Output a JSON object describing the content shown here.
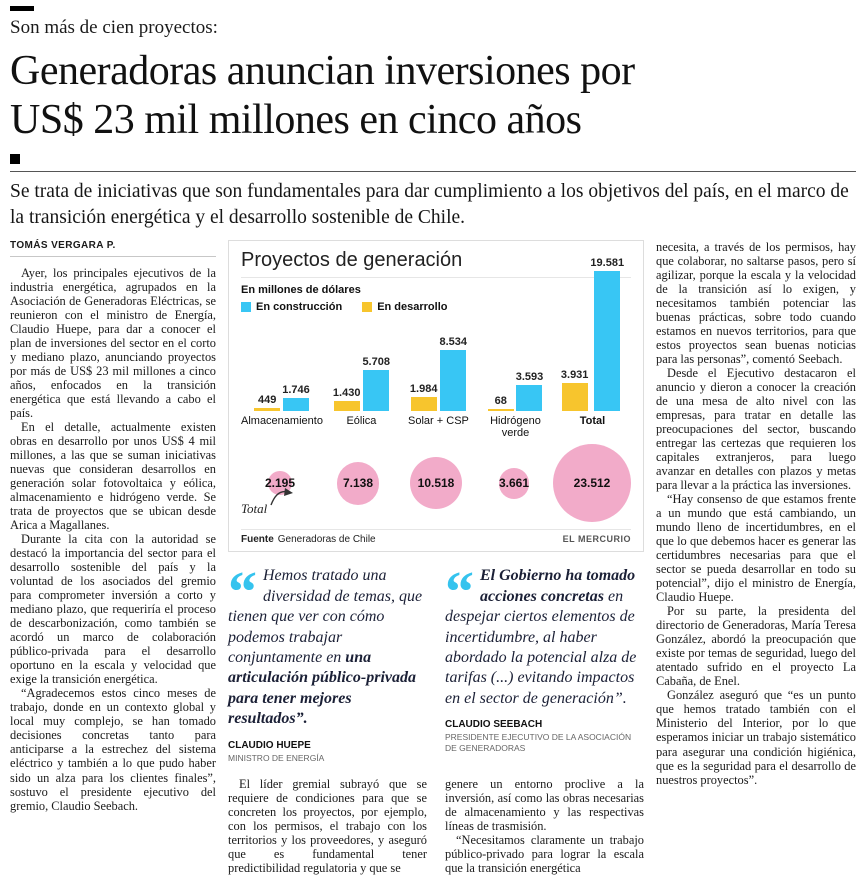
{
  "header": {
    "kicker": "Son más de cien proyectos:",
    "headline_line1": "Generadoras anuncian inversiones por",
    "headline_line2": "US$ 23 mil millones en cinco años",
    "subheadline": "Se trata de iniciativas que son fundamentales para dar cumplimiento a los objetivos del país, en el marco de la transición energética y el desarrollo sostenible de Chile.",
    "byline": "TOMÁS VERGARA P."
  },
  "left_column": {
    "paragraphs": [
      "Ayer, los principales ejecutivos de la industria energética, agrupados en la Asociación de Generadoras Eléctricas, se reunieron con el ministro de Energía, Claudio Huepe, para dar a conocer el plan de inversiones del sector en el corto y mediano plazo, anunciando proyectos por más de US$ 23 mil millones a cinco años, enfocados en la transición energética que está llevando a cabo el país.",
      "En el detalle, actualmente existen obras en desarrollo por unos US$ 4 mil millones, a las que se suman iniciativas nuevas que consideran desarrollos en generación solar fotovoltaica y eólica, almacenamiento e hidrógeno verde. Se trata de proyectos que se ubican desde Arica a Magallanes.",
      "Durante la cita con la autoridad se destacó la importancia del sector para el desarrollo sostenible del país y la voluntad de los asociados del gremio para comprometer inversión a corto y mediano plazo, que requeriría el proceso de descarbonización, como también se acordó un marco de colaboración público-privada para el desarrollo oportuno en la escala y velocidad que exige la transición energética.",
      "“Agradecemos estos cinco meses de trabajo, donde en un contexto global y local muy complejo, se han tomado decisiones concretas tanto para anticiparse a la estrechez del sistema eléctrico y también a lo que pudo haber sido un alza para los clientes finales”, sostuvo el presidente ejecutivo del gremio, Claudio Seebach."
    ]
  },
  "chart_data": {
    "type": "bar",
    "title": "Proyectos de generación",
    "subtitle": "En millones de dólares",
    "legend": [
      {
        "label": "En construcción",
        "color": "#38c6f4"
      },
      {
        "label": "En desarrollo",
        "color": "#f7c52d"
      }
    ],
    "categories": [
      {
        "label": "Almacenamiento",
        "bold": false
      },
      {
        "label": "Eólica",
        "bold": false
      },
      {
        "label": "Solar + CSP",
        "bold": false
      },
      {
        "label": "Hidrógeno verde",
        "bold": false
      },
      {
        "label": "Total",
        "bold": true
      }
    ],
    "series": [
      {
        "name": "En desarrollo",
        "color": "#f7c52d",
        "values": [
          449,
          1430,
          1984,
          68,
          3931
        ],
        "labels": [
          "449",
          "1.430",
          "1.984",
          "68",
          "3.931"
        ]
      },
      {
        "name": "En construcción",
        "color": "#38c6f4",
        "values": [
          1746,
          5708,
          8534,
          3593,
          19581
        ],
        "labels": [
          "1.746",
          "5.708",
          "8.534",
          "3.593",
          "19.581"
        ]
      }
    ],
    "ylim": [
      0,
      19581
    ],
    "bubbles": {
      "label": "Total",
      "color": "#f2abc9",
      "values": [
        2195,
        7138,
        10518,
        3661,
        23512
      ],
      "labels": [
        "2.195",
        "7.138",
        "10.518",
        "3.661",
        "23.512"
      ]
    },
    "source_label": "Fuente",
    "source": "Generadoras de Chile",
    "credit": "EL MERCURIO"
  },
  "quotes": [
    {
      "parts": [
        {
          "text": "Hemos tratado una diversidad de temas, que tienen que ver con cómo podemos trabajar conjuntamente en ",
          "strong": false
        },
        {
          "text": "una articulación público-privada para tener mejores resultados”.",
          "strong": true
        }
      ],
      "name": "CLAUDIO HUEPE",
      "role": "MINISTRO DE ENERGÍA"
    },
    {
      "parts": [
        {
          "text": "El Gobierno ha tomado acciones concretas ",
          "strong": true
        },
        {
          "text": "en despejar ciertos elementos de incertidumbre, al haber abordado la potencial alza de tarifas (...) evitando impactos en el sector de generación”.",
          "strong": false
        }
      ],
      "name": "CLAUDIO SEEBACH",
      "role": "PRESIDENTE EJECUTIVO DE LA ASOCIACIÓN DE GENERADORAS"
    }
  ],
  "mid_columns": {
    "col1": [
      "El líder gremial subrayó que se requiere de condiciones para que se concreten los proyectos, por ejemplo, con los permisos, el trabajo con los territorios y los proveedores, y aseguró que es fundamental tener predictibilidad regulatoria y que se"
    ],
    "col2": [
      "genere un entorno proclive a la inversión, así como las obras necesarias de almacenamiento y las respectivas líneas de trasmisión.",
      "“Necesitamos claramente un trabajo público-privado para lograr la escala que la transición energética"
    ]
  },
  "right_column": {
    "paragraphs": [
      "necesita, a través de los permisos, hay que colaborar, no saltarse pasos, pero sí agilizar, porque la escala y la velocidad de la transición así lo exigen, y necesitamos también potenciar las buenas prácticas, sobre todo cuando estamos en nuevos territorios, para que estos proyectos sean buenas noticias para las personas”, comentó Seebach.",
      "Desde el Ejecutivo destacaron el anuncio y dieron a conocer la creación de una mesa de alto nivel con las empresas, para tratar en detalle las preocupaciones del sector, buscando entregar las certezas que requieren los capitales extranjeros, para luego avanzar en detalles con plazos y metas para llevar a la práctica las inversiones.",
      "“Hay consenso de que estamos frente a un mundo que está cambiando, un mundo lleno de incertidumbres, en el que lo que debemos hacer es generar las certidumbres necesarias para que el sector se pueda desarrollar en todo su potencial”, dijo el ministro de Energía, Claudio Huepe.",
      "Por su parte, la presidenta del directorio de Generadoras, María Teresa González, abordó la preocupación que existe por temas de seguridad, luego del atentado sufrido en el proyecto La Cabaña, de Enel.",
      "González aseguró que “es un punto que hemos tratado también con el Ministerio del Interior, por lo que esperamos iniciar un trabajo sistemático para asegurar una condición higiénica, que es la seguridad para el desarrollo de nuestros proyectos”."
    ]
  }
}
